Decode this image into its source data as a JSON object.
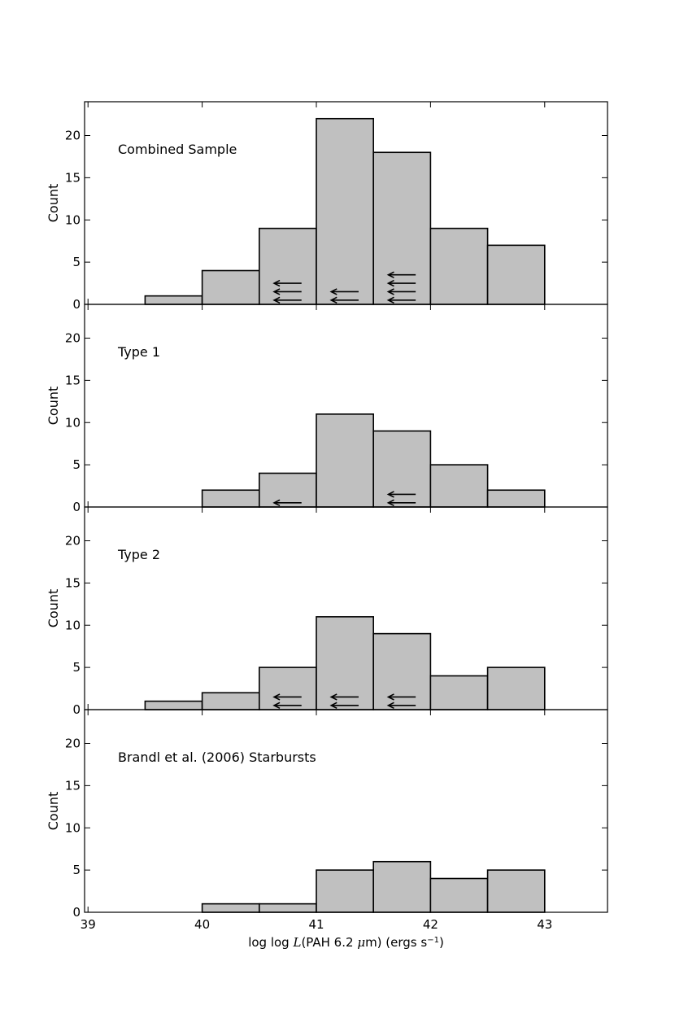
{
  "chart_data": {
    "type": "bar",
    "subtype": "histogram-stack",
    "shared_x": {
      "xlim": [
        38.97,
        43.55
      ],
      "xticks": [
        39,
        40,
        41,
        42,
        43
      ],
      "xtick_labels": [
        "39",
        "40",
        "41",
        "42",
        "43"
      ],
      "xlabel_parts": [
        "log log ",
        "L",
        "(PAH 6.2 ",
        "μ",
        "m) (ergs s",
        "−1",
        ")"
      ]
    },
    "bin_edges": [
      39.5,
      40.0,
      40.5,
      41.0,
      41.5,
      42.0,
      42.5,
      43.0
    ],
    "ylim": [
      0,
      24
    ],
    "yticks": [
      0,
      5,
      10,
      15,
      20
    ],
    "ytick_labels": [
      "0",
      "5",
      "10",
      "15",
      "20"
    ],
    "ylabel": "Count",
    "bar_color": "#c0c0c0",
    "edge_color": "#000000",
    "panels": [
      {
        "title": "Combined Sample",
        "counts": [
          1,
          4,
          9,
          22,
          18,
          9,
          7
        ],
        "upper_limit_arrows": [
          {
            "x": 40.75,
            "y": 0.5
          },
          {
            "x": 40.75,
            "y": 1.5
          },
          {
            "x": 40.75,
            "y": 2.5
          },
          {
            "x": 41.25,
            "y": 0.5
          },
          {
            "x": 41.25,
            "y": 1.5
          },
          {
            "x": 41.75,
            "y": 0.5
          },
          {
            "x": 41.75,
            "y": 1.5
          },
          {
            "x": 41.75,
            "y": 2.5
          },
          {
            "x": 41.75,
            "y": 3.5
          }
        ]
      },
      {
        "title": "Type 1",
        "counts": [
          0,
          2,
          4,
          11,
          9,
          5,
          2
        ],
        "upper_limit_arrows": [
          {
            "x": 40.75,
            "y": 0.5
          },
          {
            "x": 41.75,
            "y": 0.5
          },
          {
            "x": 41.75,
            "y": 1.5
          }
        ]
      },
      {
        "title": "Type 2",
        "counts": [
          1,
          2,
          5,
          11,
          9,
          4,
          5
        ],
        "upper_limit_arrows": [
          {
            "x": 40.75,
            "y": 0.5
          },
          {
            "x": 40.75,
            "y": 1.5
          },
          {
            "x": 41.25,
            "y": 0.5
          },
          {
            "x": 41.25,
            "y": 1.5
          },
          {
            "x": 41.75,
            "y": 0.5
          },
          {
            "x": 41.75,
            "y": 1.5
          }
        ]
      },
      {
        "title": "Brandl et al. (2006) Starbursts",
        "counts": [
          0,
          1,
          1,
          5,
          6,
          4,
          5
        ],
        "upper_limit_arrows": []
      }
    ]
  }
}
